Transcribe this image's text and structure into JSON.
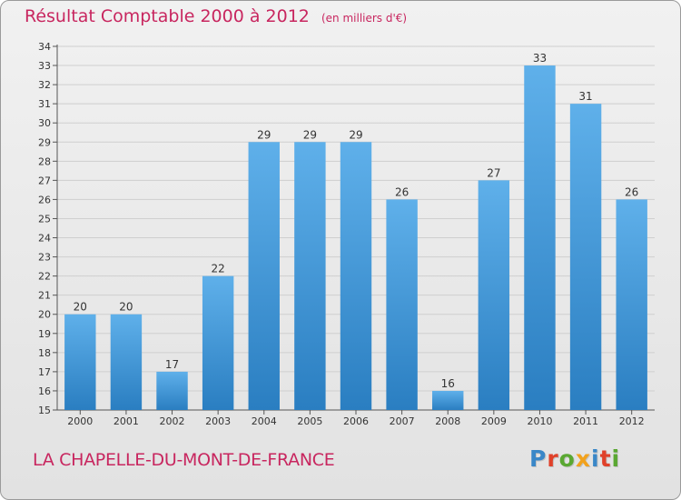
{
  "header": {
    "title": "Résultat Comptable 2000 à 2012",
    "unit": "(en milliers d'€)"
  },
  "footer": {
    "city": "LA CHAPELLE-DU-MONT-DE-FRANCE",
    "brand": "Proxiti",
    "brand_colors": [
      "#3a87c8",
      "#e0412a",
      "#5aa832",
      "#f2a21d",
      "#3a87c8",
      "#e0412a",
      "#5aa832"
    ]
  },
  "colors": {
    "bar_light": "#5fb0ea",
    "bar_dark": "#2a7ec1",
    "accent": "#c8265f",
    "axis_text": "#333333",
    "grid": "#cfcfcf"
  },
  "chart_data": {
    "type": "bar",
    "categories": [
      "2000",
      "2001",
      "2002",
      "2003",
      "2004",
      "2005",
      "2006",
      "2007",
      "2008",
      "2009",
      "2010",
      "2011",
      "2012"
    ],
    "values": [
      20,
      20,
      17,
      22,
      29,
      29,
      29,
      26,
      16,
      27,
      33,
      31,
      26
    ],
    "data_labels": [
      "20",
      "20",
      "17",
      "22",
      "29",
      "29",
      "29",
      "26",
      "16",
      "27",
      "33",
      "31",
      "26"
    ],
    "ylim": [
      15,
      34
    ],
    "yticks": [
      15,
      16,
      17,
      18,
      19,
      20,
      21,
      22,
      23,
      24,
      25,
      26,
      27,
      28,
      29,
      30,
      31,
      32,
      33,
      34
    ],
    "grid": true,
    "legend": "none"
  }
}
